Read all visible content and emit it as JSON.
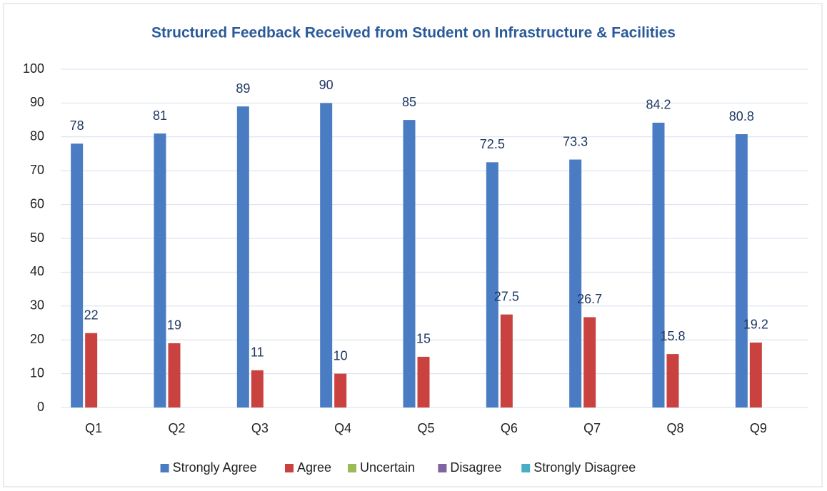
{
  "chart_data": {
    "type": "bar",
    "title": "Structured Feedback Received from Student on Infrastructure & Facilities",
    "categories": [
      "Q1",
      "Q2",
      "Q3",
      "Q4",
      "Q5",
      "Q6",
      "Q7",
      "Q8",
      "Q9"
    ],
    "series": [
      {
        "name": "Strongly Agree",
        "color": "#4a7cc4",
        "values": [
          78,
          81,
          89,
          90,
          85,
          72.5,
          73.3,
          84.2,
          80.8
        ]
      },
      {
        "name": "Agree",
        "color": "#c9423f",
        "values": [
          22,
          19,
          11,
          10,
          15,
          27.5,
          26.7,
          15.8,
          19.2
        ]
      },
      {
        "name": "Uncertain",
        "color": "#9bbb59",
        "values": [
          0,
          0,
          0,
          0,
          0,
          0,
          0,
          0,
          0
        ]
      },
      {
        "name": "Disagree",
        "color": "#8064a2",
        "values": [
          0,
          0,
          0,
          0,
          0,
          0,
          0,
          0,
          0
        ]
      },
      {
        "name": "Strongly Disagree",
        "color": "#4bacc6",
        "values": [
          0,
          0,
          0,
          0,
          0,
          0,
          0,
          0,
          0
        ]
      }
    ],
    "ylim": [
      0,
      100
    ],
    "yticks": [
      0,
      10,
      20,
      30,
      40,
      50,
      60,
      70,
      80,
      90,
      100
    ],
    "grid": true,
    "legend": "bottom"
  }
}
